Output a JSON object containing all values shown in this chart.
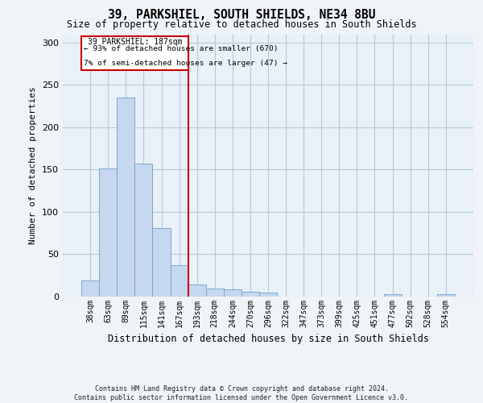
{
  "title": "39, PARKSHIEL, SOUTH SHIELDS, NE34 8BU",
  "subtitle": "Size of property relative to detached houses in South Shields",
  "xlabel": "Distribution of detached houses by size in South Shields",
  "ylabel": "Number of detached properties",
  "footer": "Contains HM Land Registry data © Crown copyright and database right 2024.\nContains public sector information licensed under the Open Government Licence v3.0.",
  "bar_labels": [
    "38sqm",
    "63sqm",
    "89sqm",
    "115sqm",
    "141sqm",
    "167sqm",
    "193sqm",
    "218sqm",
    "244sqm",
    "270sqm",
    "296sqm",
    "322sqm",
    "347sqm",
    "373sqm",
    "399sqm",
    "425sqm",
    "451sqm",
    "477sqm",
    "502sqm",
    "528sqm",
    "554sqm"
  ],
  "bar_values": [
    19,
    151,
    235,
    157,
    81,
    37,
    14,
    9,
    8,
    5,
    4,
    0,
    0,
    0,
    0,
    0,
    0,
    2,
    0,
    0,
    2
  ],
  "bar_color": "#c5d8ef",
  "bar_edge_color": "#7aa8d0",
  "marker_line_color": "#cc0000",
  "marker_box_color": "#cc0000",
  "annotation_line1": "39 PARKSHIEL: 187sqm",
  "annotation_line2": "← 93% of detached houses are smaller (670)",
  "annotation_line3": "7% of semi-detached houses are larger (47) →",
  "ylim": [
    0,
    310
  ],
  "yticks": [
    0,
    50,
    100,
    150,
    200,
    250,
    300
  ],
  "bg_color": "#f0f4f8",
  "plot_bg_color": "#e8f0f8",
  "grid_color": "#b8c8d8",
  "title_fontsize": 10.5,
  "subtitle_fontsize": 8.5
}
